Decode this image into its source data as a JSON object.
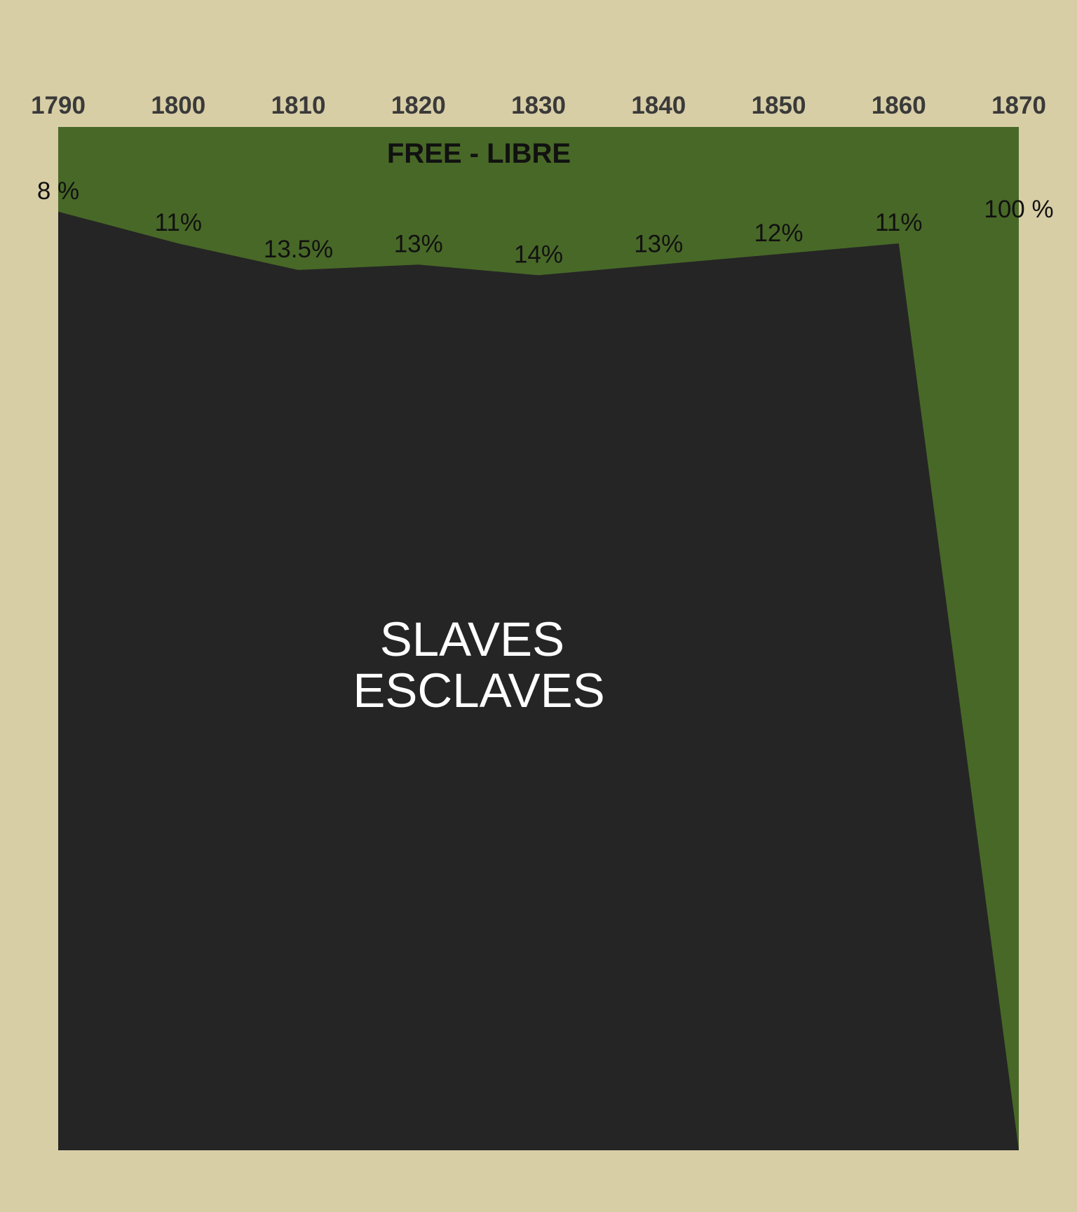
{
  "colors": {
    "background": "#d8cea6",
    "free": "#486827",
    "slaves": "#252525",
    "year_text": "#3a3a3a",
    "value_text": "#111111",
    "slaves_text": "#ffffff",
    "free_text": "#111111"
  },
  "chart_data": {
    "type": "area",
    "stacking": "percent",
    "x": [
      1790,
      1800,
      1810,
      1820,
      1830,
      1840,
      1850,
      1860,
      1870
    ],
    "tick_labels": [
      "1790",
      "1800",
      "1810",
      "1820",
      "1830",
      "1840",
      "1850",
      "1860",
      "1870"
    ],
    "ylim": [
      0,
      100
    ],
    "series": [
      {
        "name": "FREE - LIBRE",
        "values": [
          8,
          11,
          13.5,
          13,
          14,
          13,
          12,
          11,
          100
        ],
        "value_labels": [
          "8 %",
          "11%",
          "13.5%",
          "13%",
          "14%",
          "13%",
          "12%",
          "11%",
          "100 %"
        ]
      },
      {
        "name_lines": [
          "SLAVES",
          "ESCLAVES"
        ],
        "values": [
          92,
          89,
          86.5,
          87,
          86,
          87,
          88,
          89,
          0
        ]
      }
    ],
    "grid": false,
    "legend": "none"
  }
}
